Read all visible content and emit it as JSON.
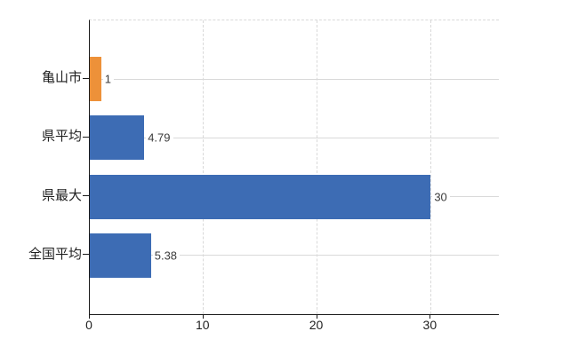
{
  "chart_data": {
    "type": "bar",
    "orientation": "horizontal",
    "title": "",
    "xlabel": "",
    "ylabel": "",
    "categories": [
      "亀山市",
      "県平均",
      "県最大",
      "全国平均"
    ],
    "values": [
      1,
      4.79,
      30,
      5.38
    ],
    "value_labels": [
      "1",
      "4.79",
      "30",
      "5.38"
    ],
    "bar_colors": [
      "#ED9139",
      "#3D6CB4",
      "#3D6CB4",
      "#3D6CB4"
    ],
    "x_ticks": [
      0,
      10,
      20,
      30
    ],
    "x_tick_labels": [
      "0",
      "10",
      "20",
      "30"
    ],
    "xlim": [
      0,
      36
    ],
    "legend": null,
    "grid": {
      "vertical_gridlines": "dashed",
      "category_lines": "solid",
      "top_border": "dashed"
    },
    "colors": {
      "background": "#FFFFFF",
      "gridline": "#D9D9D9",
      "axis": "#1A1A1A",
      "value_text": "#3C3C3C",
      "tick_text": "#1F1F1F"
    }
  }
}
